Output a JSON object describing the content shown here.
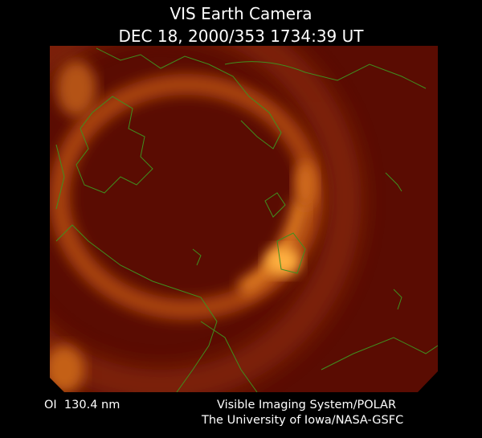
{
  "header": {
    "title": "VIS Earth Camera",
    "timestamp": "DEC 18, 2000/353 1734:39 UT"
  },
  "footer": {
    "filter": "OI  130.4 nm",
    "credit_line1": "Visible Imaging System/POLAR",
    "credit_line2": "The University of Iowa/NASA-GSFC"
  }
}
